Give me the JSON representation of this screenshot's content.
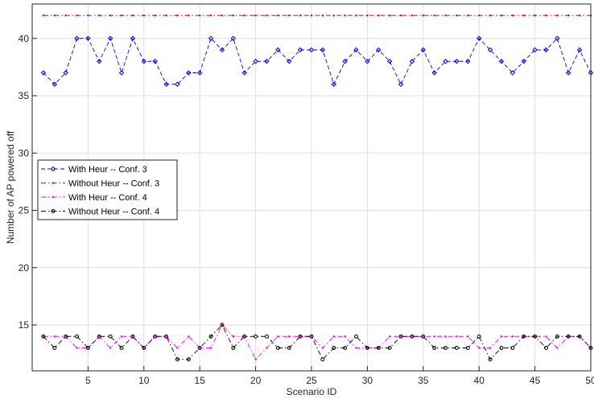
{
  "chart_data": {
    "type": "line",
    "title": "",
    "xlabel": "Scenario ID",
    "ylabel": "Number of AP powered off",
    "xlim": [
      0,
      50
    ],
    "ylim": [
      11,
      43
    ],
    "xticks": [
      5,
      10,
      15,
      20,
      25,
      30,
      35,
      40,
      45,
      50
    ],
    "yticks": [
      15,
      20,
      25,
      30,
      35,
      40
    ],
    "grid": true,
    "legend_position": "center-left",
    "x": [
      1,
      2,
      3,
      4,
      5,
      6,
      7,
      8,
      9,
      10,
      11,
      12,
      13,
      14,
      15,
      16,
      17,
      18,
      19,
      20,
      21,
      22,
      23,
      24,
      25,
      26,
      27,
      28,
      29,
      30,
      31,
      32,
      33,
      34,
      35,
      36,
      37,
      38,
      39,
      40,
      41,
      42,
      43,
      44,
      45,
      46,
      47,
      48,
      49,
      50
    ],
    "series": [
      {
        "name": "With Heur -- Conf. 3",
        "color": "#0000ff",
        "marker": "diamond",
        "dash": "dashed",
        "values": [
          37,
          36,
          37,
          40,
          40,
          38,
          40,
          37,
          40,
          38,
          38,
          36,
          36,
          37,
          37,
          40,
          39,
          40,
          37,
          38,
          38,
          39,
          38,
          39,
          39,
          39,
          36,
          38,
          39,
          38,
          39,
          38,
          36,
          38,
          39,
          37,
          38,
          38,
          38,
          40,
          39,
          38,
          37,
          38,
          39,
          39,
          40,
          37,
          39,
          37
        ]
      },
      {
        "name": "Without Heur -- Conf. 3",
        "color": "#ff0000",
        "marker": "point",
        "dash": "dashdot",
        "values": [
          42,
          42,
          42,
          42,
          42,
          42,
          42,
          42,
          42,
          42,
          42,
          42,
          42,
          42,
          42,
          42,
          42,
          42,
          42,
          42,
          42,
          42,
          42,
          42,
          42,
          42,
          42,
          42,
          42,
          42,
          42,
          42,
          42,
          42,
          42,
          42,
          42,
          42,
          42,
          42,
          42,
          42,
          42,
          42,
          42,
          42,
          42,
          42,
          42,
          42
        ]
      },
      {
        "name": "With Heur -- Conf. 4",
        "color": "#ff00ff",
        "marker": "point",
        "dash": "dashdot",
        "values": [
          14,
          14,
          14,
          13,
          13,
          14,
          13,
          14,
          14,
          13,
          14,
          14,
          13,
          14,
          13,
          13,
          15,
          14,
          14,
          12,
          13,
          14,
          14,
          14,
          14,
          13,
          14,
          14,
          13,
          13,
          13,
          14,
          14,
          14,
          14,
          14,
          14,
          14,
          14,
          13,
          13,
          14,
          14,
          14,
          14,
          14,
          13,
          14,
          14,
          13
        ]
      },
      {
        "name": "Without Heur -- Conf. 4",
        "color": "#000000",
        "marker": "circle",
        "dash": "dashdot",
        "values": [
          14,
          13,
          14,
          14,
          13,
          14,
          14,
          13,
          14,
          13,
          14,
          14,
          12,
          12,
          13,
          14,
          15,
          13,
          14,
          14,
          14,
          13,
          13,
          14,
          14,
          12,
          13,
          13,
          14,
          13,
          13,
          13,
          14,
          14,
          14,
          13,
          13,
          13,
          13,
          14,
          12,
          13,
          13,
          14,
          14,
          13,
          14,
          14,
          14,
          13
        ]
      }
    ]
  }
}
